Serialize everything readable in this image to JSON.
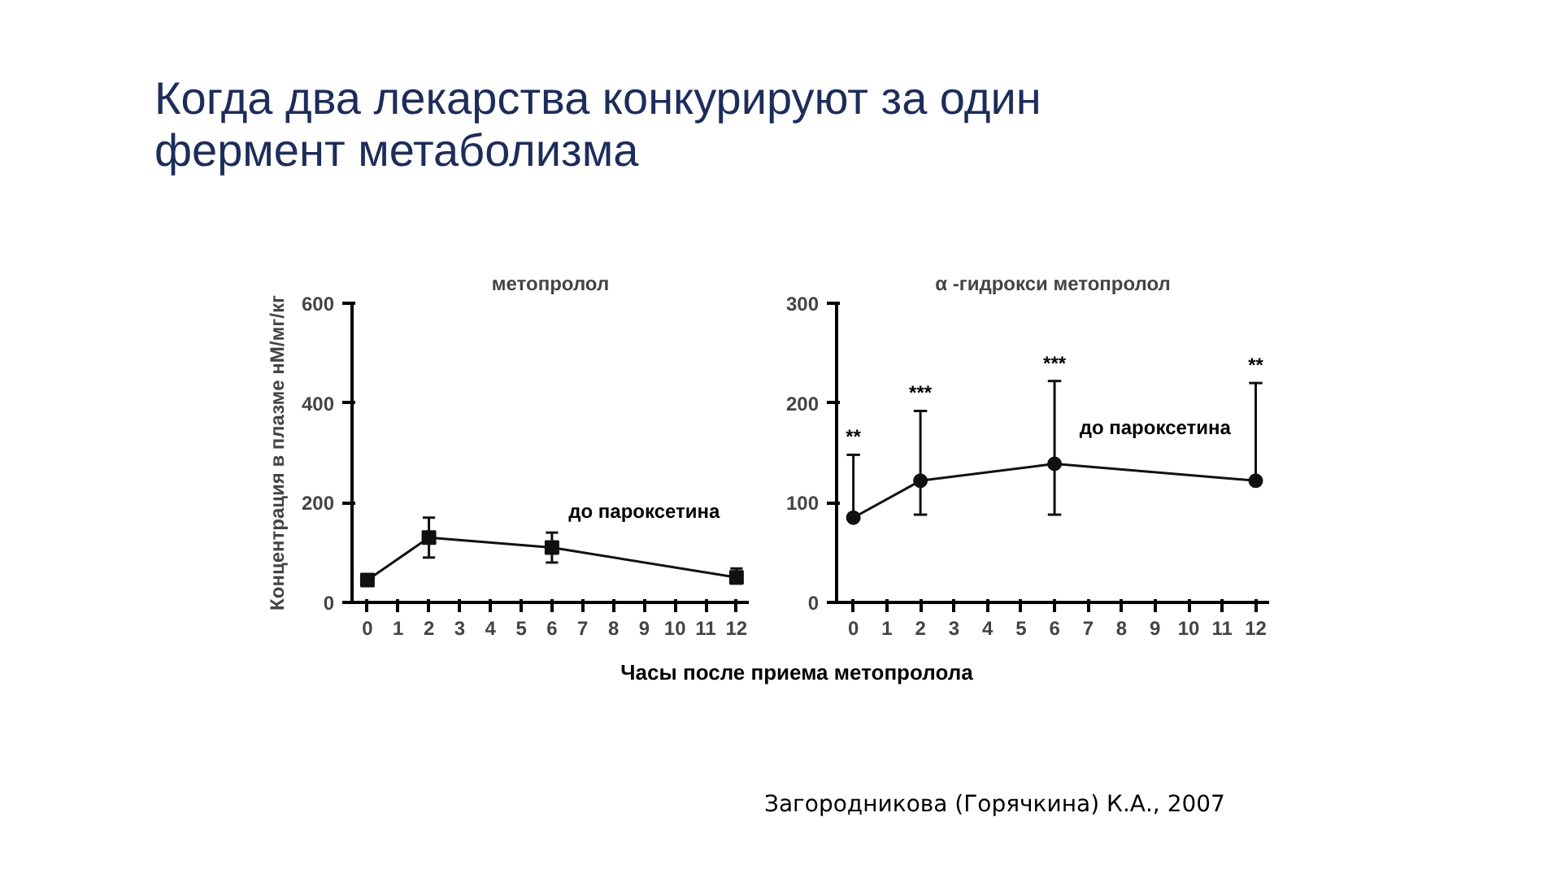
{
  "chart_data": [
    {
      "type": "line",
      "title": "Когда два лекарства конкурируют за один фермент метаболизма",
      "subtitle": "метопролол",
      "ylabel": "Концентрация в плазме нМ/мг/кг",
      "x": [
        0,
        2,
        6,
        12
      ],
      "xlim": [
        -0.5,
        12.4
      ],
      "xticks": [
        0,
        1,
        2,
        3,
        4,
        5,
        6,
        7,
        8,
        9,
        10,
        11,
        12
      ],
      "ylim": [
        0,
        600
      ],
      "yticks": [
        0,
        200,
        400,
        600
      ],
      "marker": "square",
      "line_style": "solid",
      "grid": false,
      "series": [
        {
          "name": "до пароксетина",
          "color": "#111111",
          "values": [
            45,
            130,
            110,
            50
          ],
          "errors": [
            [
              35,
              55
            ],
            [
              90,
              170
            ],
            [
              80,
              140
            ],
            [
              38,
              68
            ]
          ]
        }
      ]
    },
    {
      "type": "line",
      "title": "α -гидрокси метопролол",
      "xlabel": "Часы после приема метопролола",
      "x": [
        0,
        2,
        6,
        12
      ],
      "xlim": [
        -0.5,
        12.4
      ],
      "xticks": [
        0,
        1,
        2,
        3,
        4,
        5,
        6,
        7,
        8,
        9,
        10,
        11,
        12
      ],
      "ylim": [
        0,
        300
      ],
      "yticks": [
        0,
        100,
        200,
        300
      ],
      "marker": "circle",
      "line_style": "solid",
      "grid": false,
      "series": [
        {
          "name": "до пароксетина",
          "color": "#111111",
          "values": [
            85,
            122,
            139,
            122
          ],
          "errors": [
            [
              85,
              148
            ],
            [
              88,
              192
            ],
            [
              88,
              222
            ],
            [
              122,
              220
            ]
          ]
        }
      ],
      "annotations": [
        "**",
        "***",
        "***",
        "**",
        "Загородникова (Горячкина) К.А., 2007"
      ]
    }
  ]
}
